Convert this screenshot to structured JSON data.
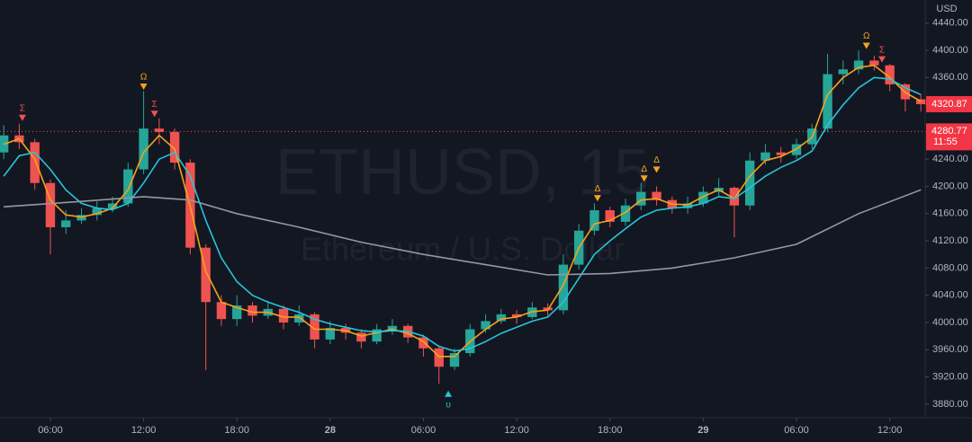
{
  "chart_data": {
    "type": "candlestick",
    "watermark": "ETHUSD, 15",
    "watermark_sub": "Ethereum / U.S. Dollar",
    "currency": "USD",
    "up_color": "#26a69a",
    "down_color": "#ef5350",
    "xlim": [
      2.76,
      62.28
    ],
    "ylim": [
      3860,
      4474
    ],
    "xticks": [
      {
        "value": 6,
        "label": "06:00"
      },
      {
        "value": 12,
        "label": "12:00"
      },
      {
        "value": 18,
        "label": "18:00"
      },
      {
        "value": 24,
        "label": "28"
      },
      {
        "value": 30,
        "label": "06:00"
      },
      {
        "value": 36,
        "label": "12:00"
      },
      {
        "value": 42,
        "label": "18:00"
      },
      {
        "value": 48,
        "label": "29"
      },
      {
        "value": 54,
        "label": "06:00"
      },
      {
        "value": 60,
        "label": "12:00"
      }
    ],
    "yticks": [
      {
        "value": 3880,
        "label": "3880.00"
      },
      {
        "value": 3920,
        "label": "3920.00"
      },
      {
        "value": 3960,
        "label": "3960.00"
      },
      {
        "value": 4000,
        "label": "4000.00"
      },
      {
        "value": 4040,
        "label": "4040.00"
      },
      {
        "value": 4080,
        "label": "4080.00"
      },
      {
        "value": 4120,
        "label": "4120.00"
      },
      {
        "value": 4160,
        "label": "4160.00"
      },
      {
        "value": 4200,
        "label": "4200.00"
      },
      {
        "value": 4240,
        "label": "4240.00"
      },
      {
        "value": 4280,
        "label": "4280.00"
      },
      {
        "value": 4320,
        "label": "4320.00"
      },
      {
        "value": 4360,
        "label": "4360.00"
      },
      {
        "value": 4400,
        "label": "4400.00"
      },
      {
        "value": 4440,
        "label": "4440.00"
      }
    ],
    "x": [
      3,
      4,
      5,
      6,
      7,
      8,
      9,
      10,
      11,
      12,
      13,
      14,
      15,
      16,
      17,
      18,
      19,
      20,
      21,
      22,
      23,
      24,
      25,
      26,
      27,
      28,
      29,
      30,
      31,
      32,
      33,
      34,
      35,
      36,
      37,
      38,
      39,
      40,
      41,
      42,
      43,
      44,
      45,
      46,
      47,
      48,
      49,
      50,
      51,
      52,
      53,
      54,
      55,
      56,
      57,
      58,
      59,
      60,
      61,
      62
    ],
    "open": [
      4250,
      4275,
      4265,
      4205,
      4140,
      4150,
      4158,
      4168,
      4175,
      4225,
      4285,
      4280,
      4235,
      4110,
      4030,
      4005,
      4025,
      4010,
      4020,
      4000,
      4012,
      3975,
      3992,
      3985,
      3972,
      3990,
      3995,
      3978,
      3962,
      3935,
      3955,
      3990,
      4002,
      4012,
      4008,
      4022,
      4018,
      4085,
      4135,
      4165,
      4148,
      4172,
      4192,
      4180,
      4168,
      4175,
      4192,
      4198,
      4172,
      4238,
      4250,
      4246,
      4262,
      4285,
      4365,
      4372,
      4385,
      4378,
      4350,
      4328
    ],
    "high": [
      4290,
      4292,
      4270,
      4210,
      4165,
      4168,
      4178,
      4185,
      4235,
      4340,
      4300,
      4285,
      4240,
      4115,
      4040,
      4040,
      4030,
      4032,
      4025,
      4025,
      4015,
      4002,
      3998,
      3990,
      3998,
      4005,
      3998,
      3982,
      3965,
      3962,
      3998,
      4012,
      4020,
      4018,
      4030,
      4028,
      4100,
      4145,
      4175,
      4170,
      4182,
      4205,
      4200,
      4185,
      4185,
      4200,
      4212,
      4200,
      4250,
      4262,
      4258,
      4270,
      4292,
      4395,
      4385,
      4400,
      4392,
      4380,
      4352,
      4335
    ],
    "low": [
      4240,
      4255,
      4195,
      4100,
      4130,
      4145,
      4150,
      4162,
      4170,
      4218,
      4262,
      4225,
      4100,
      3930,
      3995,
      3995,
      4000,
      4005,
      3990,
      3995,
      3962,
      3968,
      3975,
      3962,
      3968,
      3982,
      3970,
      3950,
      3910,
      3930,
      3950,
      3985,
      3998,
      3998,
      4005,
      4010,
      4012,
      4078,
      4128,
      4140,
      4142,
      4165,
      4172,
      4160,
      4160,
      4170,
      4185,
      4125,
      4165,
      4232,
      4235,
      4240,
      4255,
      4280,
      4350,
      4365,
      4370,
      4340,
      4310,
      4310
    ],
    "close": [
      4275,
      4265,
      4205,
      4140,
      4150,
      4158,
      4168,
      4175,
      4225,
      4285,
      4280,
      4235,
      4110,
      4030,
      4005,
      4025,
      4010,
      4020,
      4000,
      4012,
      3975,
      3992,
      3985,
      3972,
      3990,
      3995,
      3978,
      3962,
      3935,
      3955,
      3990,
      4002,
      4012,
      4008,
      4022,
      4018,
      4085,
      4135,
      4165,
      4148,
      4172,
      4192,
      4180,
      4168,
      4175,
      4192,
      4198,
      4172,
      4238,
      4250,
      4246,
      4262,
      4285,
      4365,
      4372,
      4385,
      4378,
      4350,
      4328,
      4320.87
    ],
    "lines": [
      {
        "color": "#f7a21b",
        "values": [
          4262,
          4270,
          4240,
          4180,
          4158,
          4155,
          4160,
          4168,
          4195,
          4250,
          4275,
          4255,
          4170,
          4075,
          4030,
          4022,
          4015,
          4015,
          4008,
          4008,
          3990,
          3990,
          3988,
          3980,
          3985,
          3990,
          3984,
          3972,
          3950,
          3950,
          3972,
          3990,
          4005,
          4008,
          4016,
          4018,
          4055,
          4110,
          4145,
          4150,
          4162,
          4180,
          4182,
          4174,
          4173,
          4185,
          4195,
          4182,
          4215,
          4238,
          4244,
          4255,
          4272,
          4335,
          4360,
          4375,
          4378,
          4360,
          4338,
          4325
        ]
      },
      {
        "color": "#26c6da",
        "values": [
          4215,
          4245,
          4250,
          4225,
          4195,
          4175,
          4168,
          4166,
          4175,
          4205,
          4240,
          4250,
          4215,
          4150,
          4095,
          4060,
          4040,
          4030,
          4022,
          4015,
          4005,
          3998,
          3993,
          3988,
          3986,
          3988,
          3987,
          3980,
          3965,
          3958,
          3962,
          3972,
          3984,
          3993,
          4002,
          4008,
          4030,
          4065,
          4100,
          4120,
          4138,
          4155,
          4165,
          4168,
          4170,
          4175,
          4185,
          4182,
          4198,
          4215,
          4228,
          4238,
          4252,
          4290,
          4320,
          4345,
          4360,
          4358,
          4345,
          4335
        ]
      },
      {
        "color": "#9598a1",
        "x": [
          3,
          8,
          12,
          15,
          18,
          22,
          26,
          30,
          34,
          38,
          42,
          46,
          50,
          54,
          58,
          62
        ],
        "values": [
          4170,
          4178,
          4185,
          4180,
          4160,
          4140,
          4118,
          4100,
          4085,
          4070,
          4072,
          4080,
          4095,
          4115,
          4160,
          4195
        ]
      }
    ],
    "markers": [
      {
        "label": "Σ",
        "x": 4.2,
        "y": 4296,
        "color": "#ef5350",
        "dir": "down"
      },
      {
        "label": "Ω",
        "x": 12,
        "y": 4342,
        "color": "#f7a21b",
        "dir": "down"
      },
      {
        "label": "Σ",
        "x": 12.7,
        "y": 4302,
        "color": "#ef5350",
        "dir": "down"
      },
      {
        "label": "Δ",
        "x": 41.2,
        "y": 4178,
        "color": "#f7a21b",
        "dir": "down"
      },
      {
        "label": "Δ",
        "x": 44.2,
        "y": 4207,
        "color": "#f7a21b",
        "dir": "down"
      },
      {
        "label": "Δ",
        "x": 45,
        "y": 4220,
        "color": "#f7a21b",
        "dir": "down"
      },
      {
        "label": "Ω",
        "x": 58.5,
        "y": 4402,
        "color": "#f7a21b",
        "dir": "down"
      },
      {
        "label": "Σ",
        "x": 59.5,
        "y": 4382,
        "color": "#ef5350",
        "dir": "down"
      },
      {
        "label": "ʊ",
        "x": 31.6,
        "y": 3900,
        "color": "#26c6da",
        "dir": "up"
      }
    ],
    "last_price": 4320.87,
    "marked_price": 4280.77,
    "countdown": "11:55"
  }
}
